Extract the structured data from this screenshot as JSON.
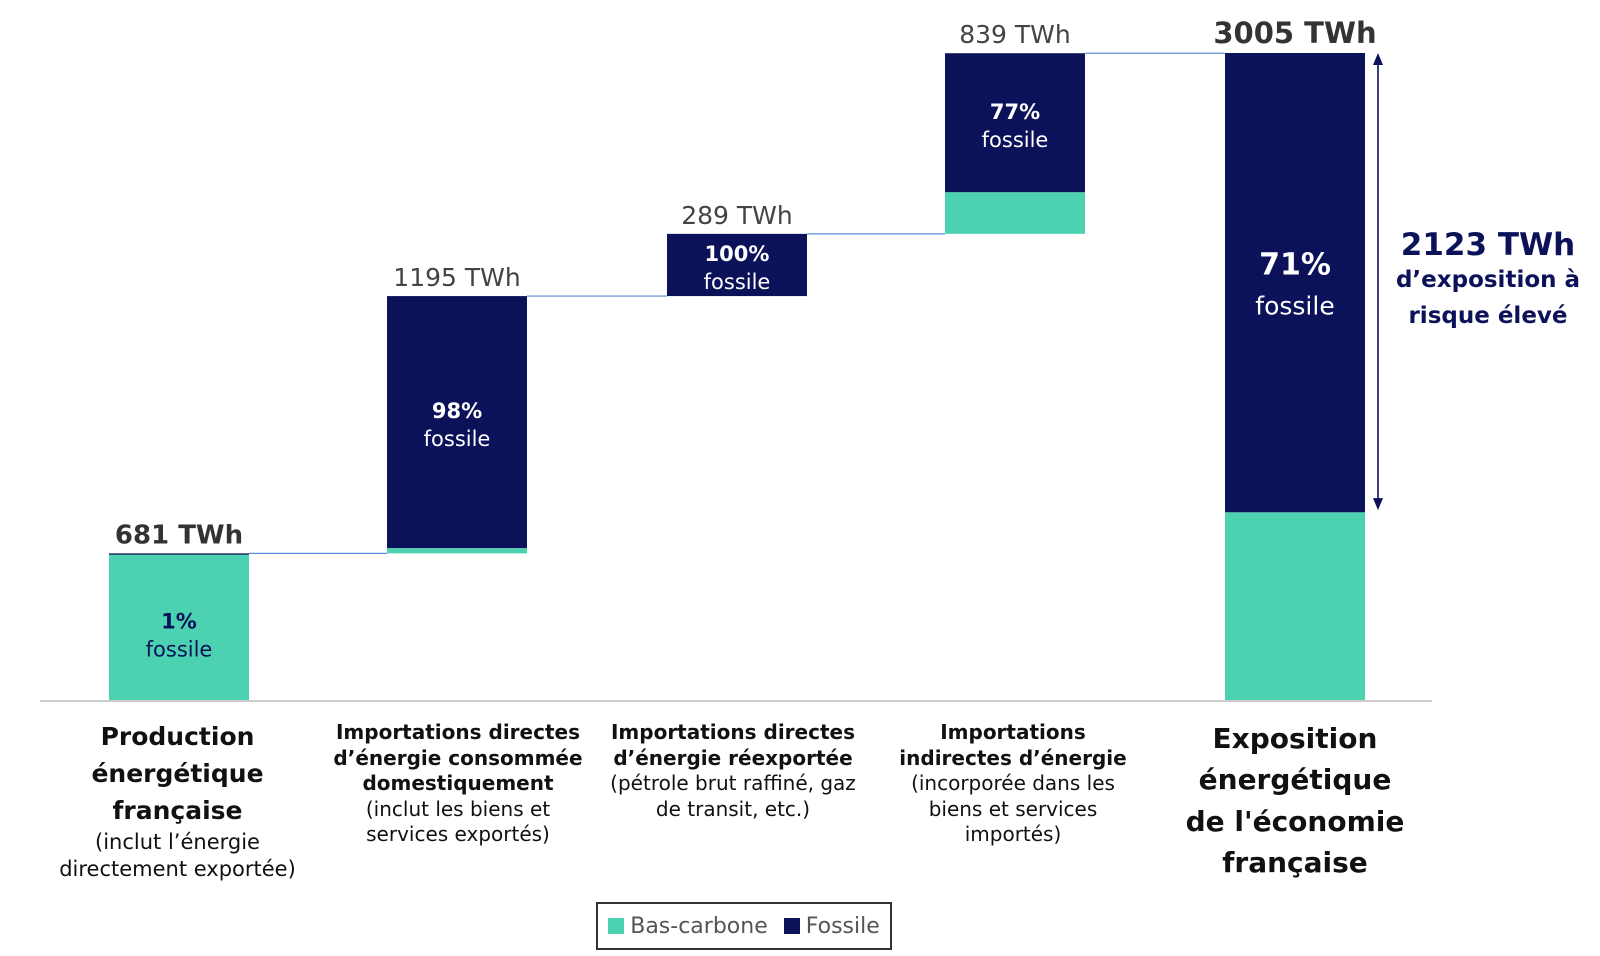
{
  "colors": {
    "low_carbon": "#4dd2b1",
    "fossil": "#0c1259",
    "connector": "#5b8fd6",
    "axis": "#cccccc"
  },
  "chart_data": {
    "type": "bar",
    "subtype": "waterfall",
    "unit": "TWh",
    "categories": [
      {
        "title": "Production énergétique française",
        "subtitle": "(inclut l’énergie directement exportée)"
      },
      {
        "title": "Importations directes d’énergie consommée domestiquement",
        "subtitle": "(inclut les biens et services exportés)"
      },
      {
        "title": "Importations directes d’énergie réexportée",
        "subtitle": "(pétrole brut raffiné, gaz de transit, etc.)"
      },
      {
        "title": "Importations indirectes d’énergie",
        "subtitle": "(incorporée dans les biens et services importés)"
      },
      {
        "title": "Exposition énergétique de l'économie française",
        "subtitle": ""
      }
    ],
    "bars": [
      {
        "base": 0,
        "value": 681,
        "fossil_share": 0.01,
        "value_label": "681 TWh",
        "pct_label": "1%",
        "pct_word": "fossile"
      },
      {
        "base": 681,
        "value": 1195,
        "fossil_share": 0.98,
        "value_label": "1195 TWh",
        "pct_label": "98%",
        "pct_word": "fossile"
      },
      {
        "base": 1876,
        "value": 289,
        "fossil_share": 1.0,
        "value_label": "289 TWh",
        "pct_label": "100%",
        "pct_word": "fossile"
      },
      {
        "base": 2165,
        "value": 839,
        "fossil_share": 0.77,
        "value_label": "839 TWh",
        "pct_label": "77%",
        "pct_word": "fossile"
      },
      {
        "base": 0,
        "value": 3005,
        "fossil_share": 0.71,
        "value_label": "3005 TWh",
        "pct_label": "71%",
        "pct_word": "fossile"
      }
    ],
    "annotation": {
      "value": "2123 TWh",
      "text_line1": "d’exposition à",
      "text_line2": "risque élevé",
      "from": 882,
      "to": 3005
    },
    "legend": [
      {
        "name": "Bas-carbone",
        "color": "#4dd2b1"
      },
      {
        "name": "Fossile",
        "color": "#0c1259"
      }
    ],
    "ylim": [
      0,
      3005
    ]
  }
}
